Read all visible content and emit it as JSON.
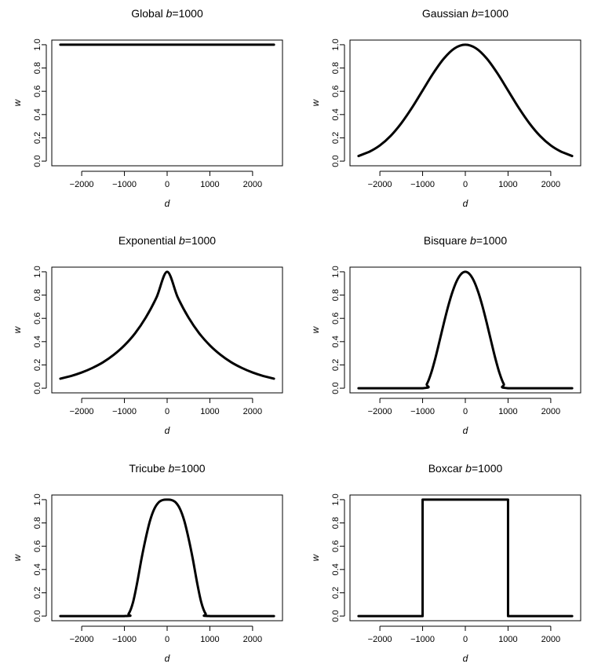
{
  "chart_data": [
    {
      "type": "line",
      "title": "Global",
      "title_suffix": "b=1000",
      "xlabel": "d",
      "ylabel": "w",
      "xlim": [
        -2500,
        2500
      ],
      "ylim": [
        0,
        1
      ],
      "xticks": [
        -2000,
        -1000,
        0,
        1000,
        2000
      ],
      "xtick_labels": [
        "−2000",
        "−1000",
        "0",
        "1000",
        "2000"
      ],
      "yticks": [
        0,
        0.2,
        0.4,
        0.6,
        0.8,
        1
      ],
      "ytick_labels": [
        "0.0",
        "0.2",
        "0.4",
        "0.6",
        "0.8",
        "1.0"
      ],
      "grid": false,
      "x": [
        -2500,
        -2000,
        -1500,
        -1000,
        -500,
        0,
        500,
        1000,
        1500,
        2000,
        2500
      ],
      "series": [
        {
          "values": [
            1,
            1,
            1,
            1,
            1,
            1,
            1,
            1,
            1,
            1,
            1
          ]
        }
      ]
    },
    {
      "type": "line",
      "title": "Gaussian",
      "title_suffix": "b=1000",
      "xlabel": "d",
      "ylabel": "w",
      "xlim": [
        -2500,
        2500
      ],
      "ylim": [
        0,
        1
      ],
      "xticks": [
        -2000,
        -1000,
        0,
        1000,
        2000
      ],
      "xtick_labels": [
        "−2000",
        "−1000",
        "0",
        "1000",
        "2000"
      ],
      "yticks": [
        0,
        0.2,
        0.4,
        0.6,
        0.8,
        1
      ],
      "ytick_labels": [
        "0.0",
        "0.2",
        "0.4",
        "0.6",
        "0.8",
        "1.0"
      ],
      "grid": false,
      "x": [
        -2500,
        -2250,
        -2000,
        -1750,
        -1500,
        -1250,
        -1000,
        -750,
        -500,
        -250,
        0,
        250,
        500,
        750,
        1000,
        1250,
        1500,
        1750,
        2000,
        2250,
        2500
      ],
      "series": [
        {
          "values": [
            0.044,
            0.08,
            0.135,
            0.216,
            0.325,
            0.458,
            0.607,
            0.755,
            0.882,
            0.969,
            1.0,
            0.969,
            0.882,
            0.755,
            0.607,
            0.458,
            0.325,
            0.216,
            0.135,
            0.08,
            0.044
          ]
        }
      ]
    },
    {
      "type": "line",
      "title": "Exponential",
      "title_suffix": "b=1000",
      "xlabel": "d",
      "ylabel": "w",
      "xlim": [
        -2500,
        2500
      ],
      "ylim": [
        0,
        1
      ],
      "xticks": [
        -2000,
        -1000,
        0,
        1000,
        2000
      ],
      "xtick_labels": [
        "−2000",
        "−1000",
        "0",
        "1000",
        "2000"
      ],
      "yticks": [
        0,
        0.2,
        0.4,
        0.6,
        0.8,
        1
      ],
      "ytick_labels": [
        "0.0",
        "0.2",
        "0.4",
        "0.6",
        "0.8",
        "1.0"
      ],
      "grid": false,
      "x": [
        -2500,
        -2250,
        -2000,
        -1750,
        -1500,
        -1250,
        -1000,
        -750,
        -500,
        -250,
        0,
        250,
        500,
        750,
        1000,
        1250,
        1500,
        1750,
        2000,
        2250,
        2500
      ],
      "series": [
        {
          "values": [
            0.082,
            0.105,
            0.135,
            0.174,
            0.223,
            0.287,
            0.368,
            0.472,
            0.607,
            0.779,
            1.0,
            0.779,
            0.607,
            0.472,
            0.368,
            0.287,
            0.223,
            0.174,
            0.135,
            0.105,
            0.082
          ]
        }
      ]
    },
    {
      "type": "line",
      "title": "Bisquare",
      "title_suffix": "b=1000",
      "xlabel": "d",
      "ylabel": "w",
      "xlim": [
        -2500,
        2500
      ],
      "ylim": [
        0,
        1
      ],
      "xticks": [
        -2000,
        -1000,
        0,
        1000,
        2000
      ],
      "xtick_labels": [
        "−2000",
        "−1000",
        "0",
        "1000",
        "2000"
      ],
      "yticks": [
        0,
        0.2,
        0.4,
        0.6,
        0.8,
        1
      ],
      "ytick_labels": [
        "0.0",
        "0.2",
        "0.4",
        "0.6",
        "0.8",
        "1.0"
      ],
      "grid": false,
      "x": [
        -2500,
        -1000,
        -900,
        -800,
        -700,
        -600,
        -500,
        -400,
        -300,
        -200,
        -100,
        0,
        100,
        200,
        300,
        400,
        500,
        600,
        700,
        800,
        900,
        1000,
        2500
      ],
      "series": [
        {
          "values": [
            0,
            0,
            0.036,
            0.13,
            0.26,
            0.41,
            0.563,
            0.706,
            0.828,
            0.922,
            0.98,
            1.0,
            0.98,
            0.922,
            0.828,
            0.706,
            0.563,
            0.41,
            0.26,
            0.13,
            0.036,
            0,
            0
          ]
        }
      ]
    },
    {
      "type": "line",
      "title": "Tricube",
      "title_suffix": "b=1000",
      "xlabel": "d",
      "ylabel": "w",
      "xlim": [
        -2500,
        2500
      ],
      "ylim": [
        0,
        1
      ],
      "xticks": [
        -2000,
        -1000,
        0,
        1000,
        2000
      ],
      "xtick_labels": [
        "−2000",
        "−1000",
        "0",
        "1000",
        "2000"
      ],
      "yticks": [
        0,
        0.2,
        0.4,
        0.6,
        0.8,
        1
      ],
      "ytick_labels": [
        "0.0",
        "0.2",
        "0.4",
        "0.6",
        "0.8",
        "1.0"
      ],
      "grid": false,
      "x": [
        -2500,
        -1000,
        -900,
        -800,
        -700,
        -600,
        -500,
        -400,
        -300,
        -200,
        -100,
        0,
        100,
        200,
        300,
        400,
        500,
        600,
        700,
        800,
        900,
        1000,
        2500
      ],
      "series": [
        {
          "values": [
            0,
            0,
            0.02,
            0.116,
            0.289,
            0.492,
            0.67,
            0.82,
            0.921,
            0.976,
            0.997,
            1.0,
            0.997,
            0.976,
            0.921,
            0.82,
            0.67,
            0.492,
            0.289,
            0.116,
            0.02,
            0,
            0
          ]
        }
      ]
    },
    {
      "type": "line",
      "title": "Boxcar",
      "title_suffix": "b=1000",
      "xlabel": "d",
      "ylabel": "w",
      "xlim": [
        -2500,
        2500
      ],
      "ylim": [
        0,
        1
      ],
      "xticks": [
        -2000,
        -1000,
        0,
        1000,
        2000
      ],
      "xtick_labels": [
        "−2000",
        "−1000",
        "0",
        "1000",
        "2000"
      ],
      "yticks": [
        0,
        0.2,
        0.4,
        0.6,
        0.8,
        1
      ],
      "ytick_labels": [
        "0.0",
        "0.2",
        "0.4",
        "0.6",
        "0.8",
        "1.0"
      ],
      "grid": false,
      "x": [
        -2500,
        -1000,
        -1000,
        1000,
        1000,
        2500
      ],
      "series": [
        {
          "values": [
            0,
            0,
            1,
            1,
            0,
            0
          ]
        }
      ]
    }
  ]
}
